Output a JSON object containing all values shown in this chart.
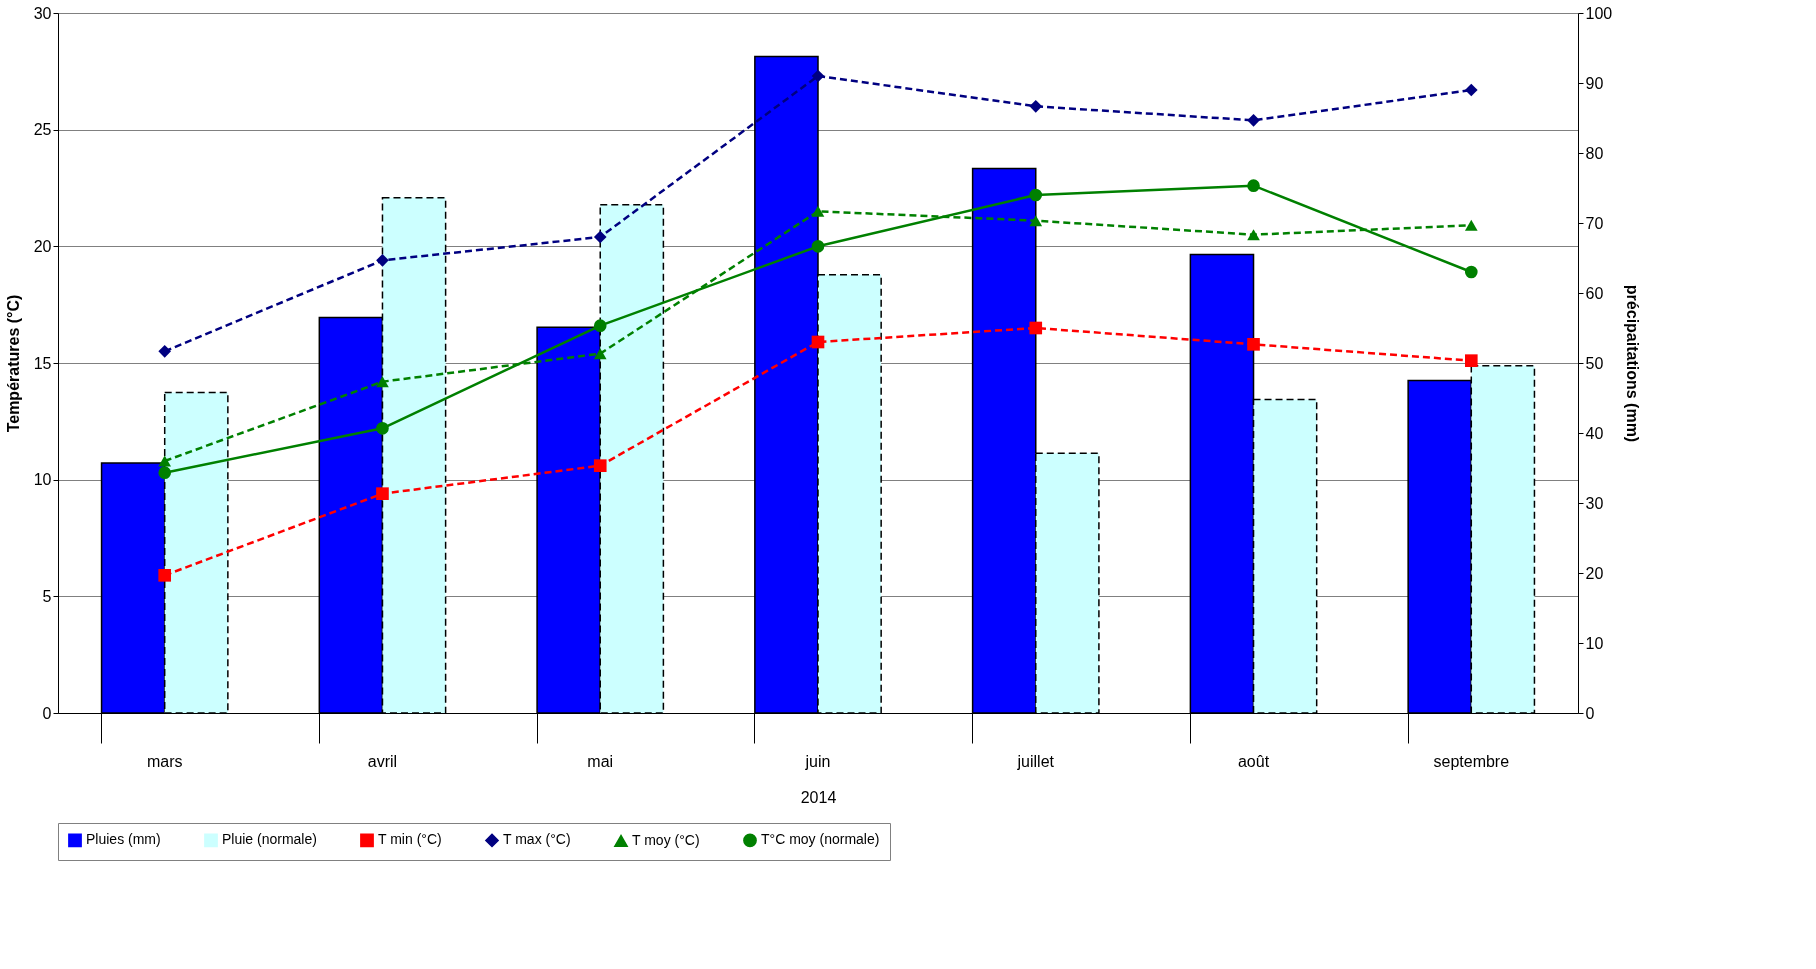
{
  "chart_data": {
    "type": "bar",
    "xlabel": "2014",
    "ylabel": "Températures (°C)",
    "y2label": "précipaitations (mm)",
    "categories": [
      "mars",
      "avril",
      "mai",
      "juin",
      "juillet",
      "août",
      "septembre"
    ],
    "series": [
      {
        "name": "Pluies (mm)",
        "axis": "y2",
        "color": "#0000ff",
        "line_style": "solid",
        "values": [
          35.7,
          56.5,
          55.1,
          93.8,
          77.8,
          65.5,
          47.5
        ]
      },
      {
        "name": "Pluie (normale)",
        "axis": "y2",
        "color": "#ccffff",
        "line_style": "dashed",
        "values": [
          45.8,
          73.6,
          72.6,
          62.6,
          37.1,
          44.8,
          49.6
        ]
      },
      {
        "name": "T min (°C)",
        "type": "line",
        "color": "#ff0000",
        "marker": "square",
        "line_style": "dashed",
        "values": [
          5.9,
          9.4,
          10.6,
          15.9,
          16.5,
          15.8,
          15.1
        ]
      },
      {
        "name": "T max (°C)",
        "type": "line",
        "color": "#000080",
        "marker": "diamond",
        "line_style": "dashed",
        "values": [
          15.5,
          19.4,
          20.4,
          27.3,
          26.0,
          25.4,
          26.7
        ]
      },
      {
        "name": "T moy (°C)",
        "type": "line",
        "color": "#008000",
        "marker": "triangle",
        "line_style": "dashed",
        "values": [
          10.8,
          14.2,
          15.4,
          21.5,
          21.1,
          20.5,
          20.9
        ]
      },
      {
        "name": "T°C moy (normale)",
        "type": "line",
        "color": "#008000",
        "marker": "circle",
        "line_style": "solid",
        "values": [
          10.3,
          12.2,
          16.6,
          20.0,
          22.2,
          22.6,
          18.9
        ]
      }
    ],
    "ylim": [
      0,
      30
    ],
    "yticks": [
      0,
      5,
      10,
      15,
      20,
      25,
      30
    ],
    "y2lim": [
      0,
      100
    ],
    "y2ticks": [
      0,
      10,
      20,
      30,
      40,
      50,
      60,
      70,
      80,
      90,
      100
    ],
    "grid": "y",
    "legend": "bottom"
  }
}
